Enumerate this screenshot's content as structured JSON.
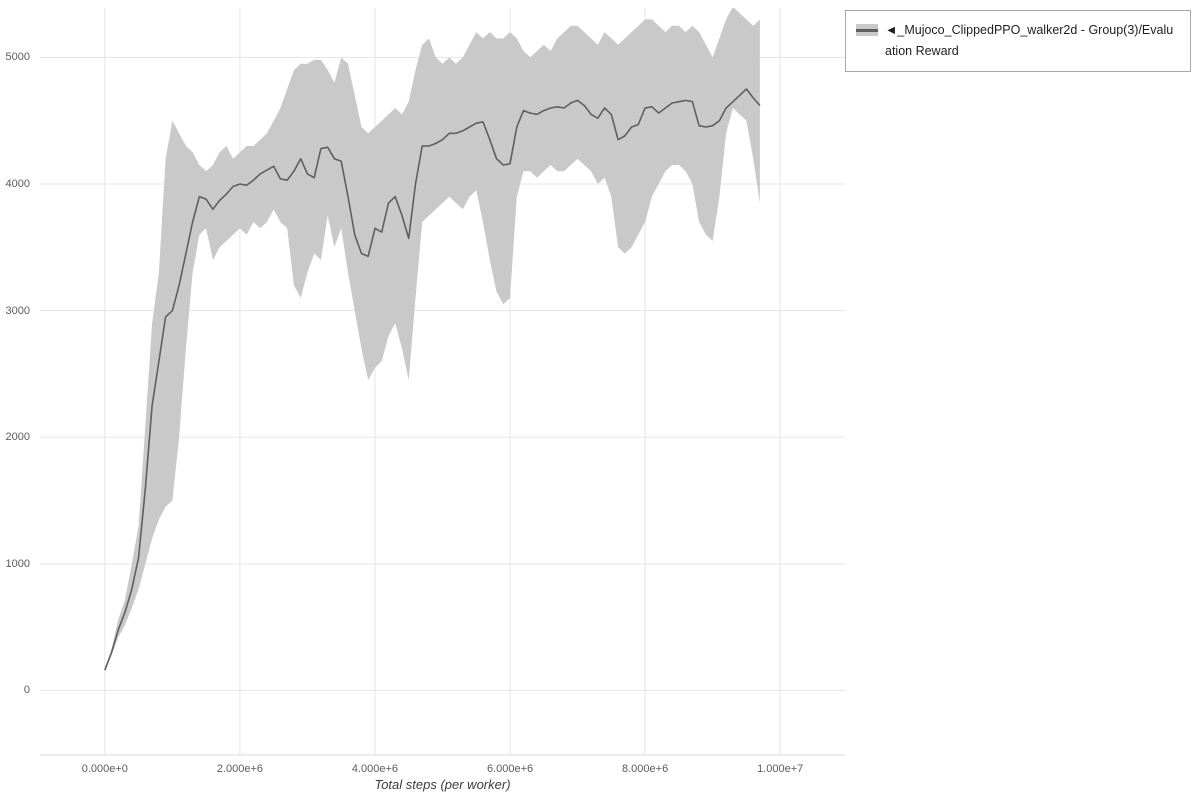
{
  "chart_data": {
    "type": "line",
    "title": "",
    "xlabel": "Total steps (per worker)",
    "ylabel": "",
    "grid": true,
    "legend_position": "outside-top-right",
    "xlim": [
      -960000,
      10960000
    ],
    "ylim": [
      -510,
      5390
    ],
    "x_ticks": [
      {
        "value": 0,
        "label": "0.000e+0"
      },
      {
        "value": 2000000,
        "label": "2.000e+6"
      },
      {
        "value": 4000000,
        "label": "4.000e+6"
      },
      {
        "value": 6000000,
        "label": "6.000e+6"
      },
      {
        "value": 8000000,
        "label": "8.000e+6"
      },
      {
        "value": 10000000,
        "label": "1.000e+7"
      }
    ],
    "y_ticks": [
      {
        "value": 0,
        "label": "0"
      },
      {
        "value": 1000,
        "label": "1000"
      },
      {
        "value": 2000,
        "label": "2000"
      },
      {
        "value": 3000,
        "label": "3000"
      },
      {
        "value": 4000,
        "label": "4000"
      },
      {
        "value": 5000,
        "label": "5000"
      }
    ],
    "colors": {
      "grid": "#e5e5e5",
      "axis": "#d9d9d9",
      "tick_text": "#5c5c5c"
    },
    "series": [
      {
        "name": "◄_Mujoco_ClippedPPO_walker2d - Group(3)/Evaluation Reward",
        "line_color": "#5f5f5f",
        "band_color": "#c9c9c9",
        "band_opacity": 1,
        "x_scale": 1000000,
        "x": [
          0,
          0.1,
          0.2,
          0.3,
          0.4,
          0.5,
          0.6,
          0.7,
          0.8,
          0.9,
          1,
          1.1,
          1.2,
          1.3,
          1.4,
          1.5,
          1.6,
          1.7,
          1.8,
          1.9,
          2,
          2.1,
          2.2,
          2.3,
          2.4,
          2.5,
          2.6,
          2.7,
          2.8,
          2.9,
          3,
          3.1,
          3.2,
          3.3,
          3.4,
          3.5,
          3.6,
          3.7,
          3.8,
          3.9,
          4,
          4.1,
          4.2,
          4.3,
          4.4,
          4.5,
          4.6,
          4.7,
          4.8,
          4.9,
          5,
          5.1,
          5.2,
          5.3,
          5.4,
          5.5,
          5.6,
          5.7,
          5.8,
          5.9,
          6,
          6.1,
          6.2,
          6.3,
          6.4,
          6.5,
          6.6,
          6.7,
          6.8,
          6.9,
          7,
          7.1,
          7.2,
          7.3,
          7.4,
          7.5,
          7.6,
          7.7,
          7.8,
          7.9,
          8,
          8.1,
          8.2,
          8.3,
          8.4,
          8.5,
          8.6,
          8.7,
          8.8,
          8.9,
          9,
          9.1,
          9.2,
          9.3,
          9.4,
          9.5,
          9.6,
          9.7
        ],
        "mean": [
          160,
          300,
          480,
          620,
          800,
          1050,
          1600,
          2250,
          2600,
          2950,
          3000,
          3200,
          3450,
          3700,
          3900,
          3880,
          3800,
          3870,
          3920,
          3980,
          4000,
          3990,
          4030,
          4080,
          4110,
          4140,
          4040,
          4030,
          4100,
          4200,
          4080,
          4050,
          4280,
          4290,
          4200,
          4180,
          3900,
          3600,
          3450,
          3430,
          3650,
          3620,
          3850,
          3900,
          3750,
          3570,
          4000,
          4300,
          4300,
          4320,
          4350,
          4400,
          4400,
          4420,
          4450,
          4480,
          4490,
          4350,
          4200,
          4150,
          4160,
          4450,
          4580,
          4560,
          4550,
          4580,
          4600,
          4610,
          4600,
          4640,
          4660,
          4620,
          4550,
          4520,
          4600,
          4550,
          4350,
          4380,
          4450,
          4470,
          4600,
          4610,
          4560,
          4600,
          4640,
          4650,
          4660,
          4650,
          4460,
          4450,
          4460,
          4500,
          4600,
          4650,
          4700,
          4750,
          4680,
          4620
        ],
        "lower": [
          150,
          280,
          420,
          520,
          650,
          800,
          1000,
          1200,
          1350,
          1450,
          1500,
          2000,
          2700,
          3300,
          3600,
          3650,
          3400,
          3500,
          3550,
          3600,
          3650,
          3600,
          3700,
          3650,
          3700,
          3800,
          3700,
          3650,
          3200,
          3100,
          3300,
          3450,
          3400,
          3750,
          3500,
          3650,
          3300,
          3000,
          2700,
          2450,
          2550,
          2600,
          2800,
          2900,
          2700,
          2450,
          3100,
          3700,
          3750,
          3800,
          3850,
          3900,
          3850,
          3800,
          3900,
          3950,
          3700,
          3400,
          3150,
          3050,
          3100,
          3900,
          4100,
          4100,
          4050,
          4100,
          4150,
          4100,
          4100,
          4150,
          4200,
          4150,
          4100,
          4000,
          4050,
          3900,
          3500,
          3450,
          3500,
          3600,
          3700,
          3900,
          4000,
          4100,
          4150,
          4150,
          4100,
          4000,
          3700,
          3600,
          3550,
          3900,
          4400,
          4600,
          4550,
          4500,
          4200,
          3850
        ],
        "upper": [
          170,
          330,
          560,
          720,
          1000,
          1300,
          2100,
          2900,
          3300,
          4200,
          4500,
          4400,
          4300,
          4250,
          4150,
          4100,
          4150,
          4250,
          4300,
          4200,
          4250,
          4300,
          4300,
          4350,
          4400,
          4500,
          4600,
          4750,
          4900,
          4950,
          4950,
          4980,
          4980,
          4900,
          4800,
          5000,
          4950,
          4700,
          4450,
          4400,
          4450,
          4500,
          4550,
          4600,
          4550,
          4650,
          4900,
          5100,
          5150,
          5000,
          4950,
          5000,
          4950,
          5000,
          5100,
          5200,
          5150,
          5200,
          5150,
          5150,
          5200,
          5150,
          5050,
          5000,
          5050,
          5100,
          5050,
          5150,
          5200,
          5250,
          5250,
          5200,
          5150,
          5100,
          5200,
          5150,
          5100,
          5150,
          5200,
          5250,
          5300,
          5300,
          5250,
          5200,
          5250,
          5250,
          5200,
          5250,
          5200,
          5100,
          5000,
          5150,
          5300,
          5400,
          5350,
          5300,
          5250,
          5300
        ]
      }
    ]
  },
  "legend": {
    "label": "◄_Mujoco_ClippedPPO_walker2d - Group(3)/Evaluation Reward"
  }
}
